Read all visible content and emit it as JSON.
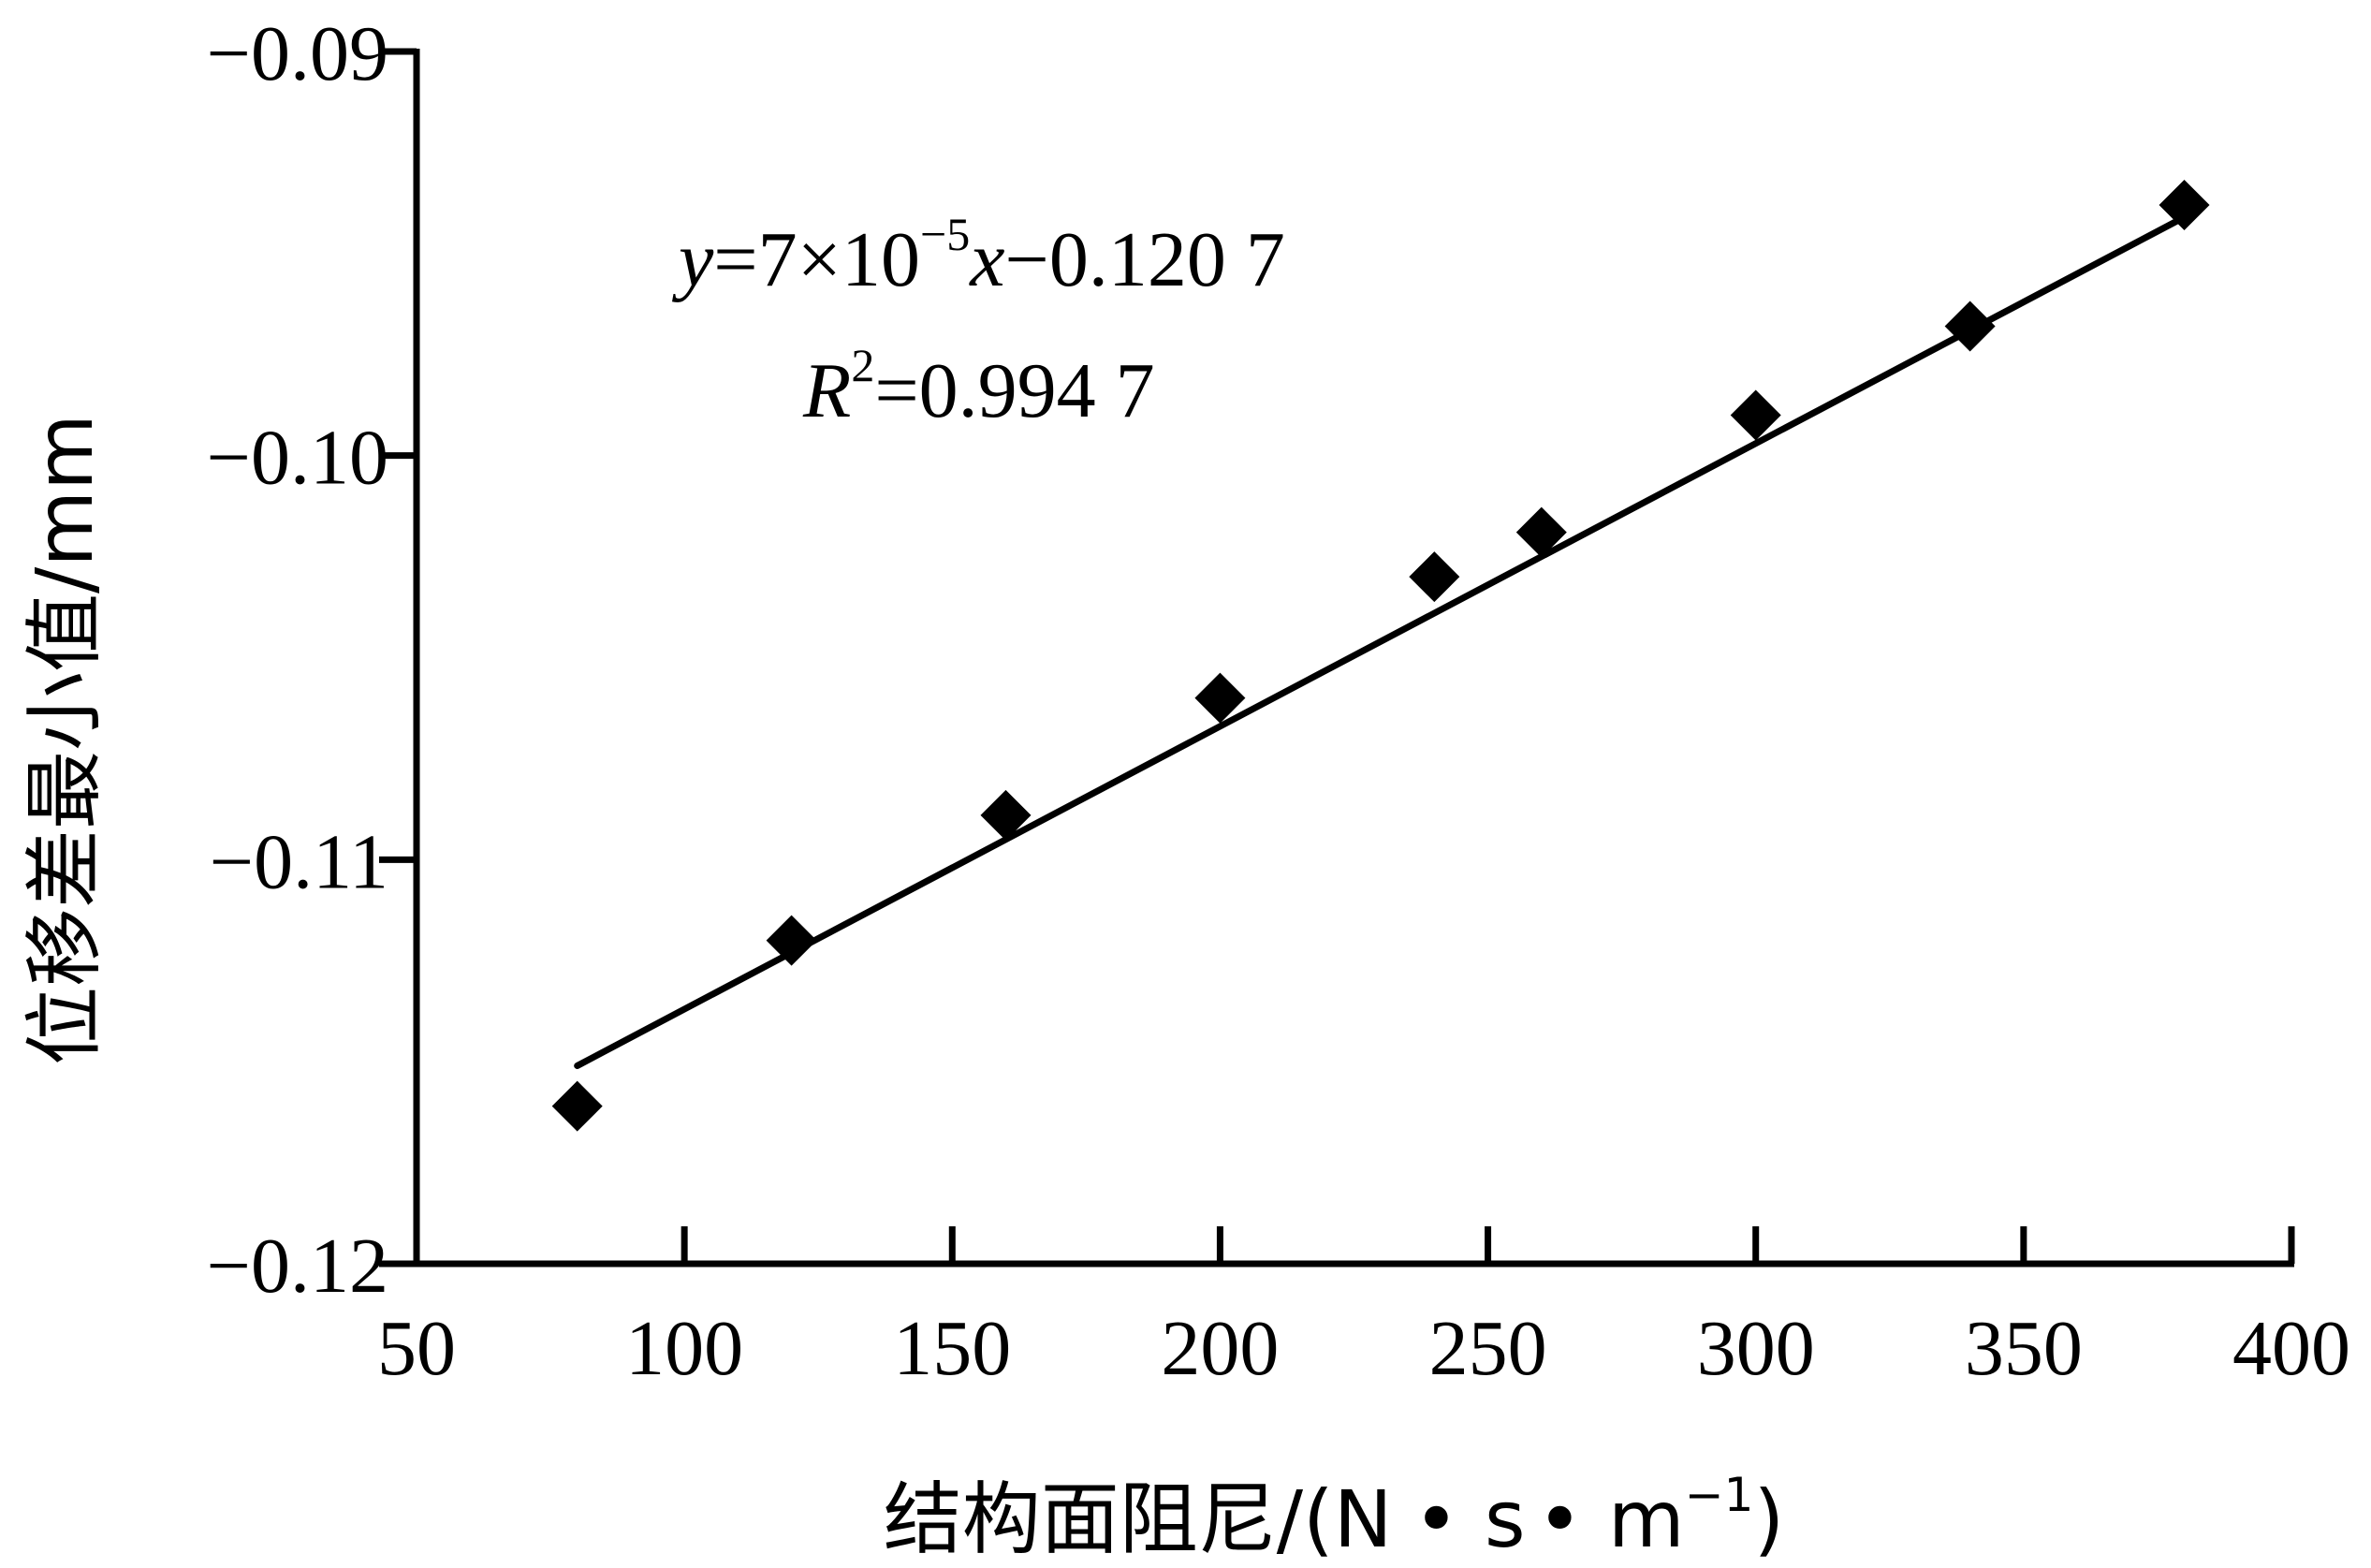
{
  "chart_data": {
    "type": "scatter",
    "xlabel": "结构面阻尼/(N • s • m⁻¹)",
    "ylabel": "位移差最小值/mm",
    "xlim": [
      50,
      400
    ],
    "ylim": [
      -0.12,
      -0.09
    ],
    "x_ticks": [
      50,
      100,
      150,
      200,
      250,
      300,
      350,
      400
    ],
    "x_tick_labels": [
      "50",
      "100",
      "150",
      "200",
      "250",
      "300",
      "350",
      "400"
    ],
    "y_ticks": [
      -0.12,
      -0.11,
      -0.1,
      -0.09
    ],
    "y_tick_labels": [
      "−0.12",
      "−0.11",
      "−0.10",
      "−0.09"
    ],
    "series": [
      {
        "marker": "diamond",
        "color": "#000000",
        "x": [
          80,
          120,
          160,
          200,
          240,
          260,
          300,
          340,
          380
        ],
        "y": [
          -0.1161,
          -0.112,
          -0.1089,
          -0.106,
          -0.103,
          -0.1019,
          -0.099,
          -0.0968,
          -0.0938
        ]
      }
    ],
    "trendline": {
      "type": "linear",
      "slope": 7e-05,
      "intercept": -0.1207,
      "x_range": [
        80,
        380
      ],
      "equation_text": "y=7×10⁻⁵x−0.120 7",
      "r2_text": "R²=0.994 7"
    },
    "grid": false,
    "legend": "none"
  },
  "equation": {
    "y": "y",
    "rhs_prefix": "=7×10",
    "exp": "−5",
    "x": "x",
    "rhs_suffix": "−0.120 7",
    "r": "R",
    "r_exp": "2",
    "r_rhs": "=0.994 7"
  },
  "xlabel_parts": {
    "main": "结构面阻尼/(N",
    "dot1": "•",
    "s": " s",
    "dot2": "•",
    "m": " m",
    "exp": "−1",
    "close": ")"
  }
}
